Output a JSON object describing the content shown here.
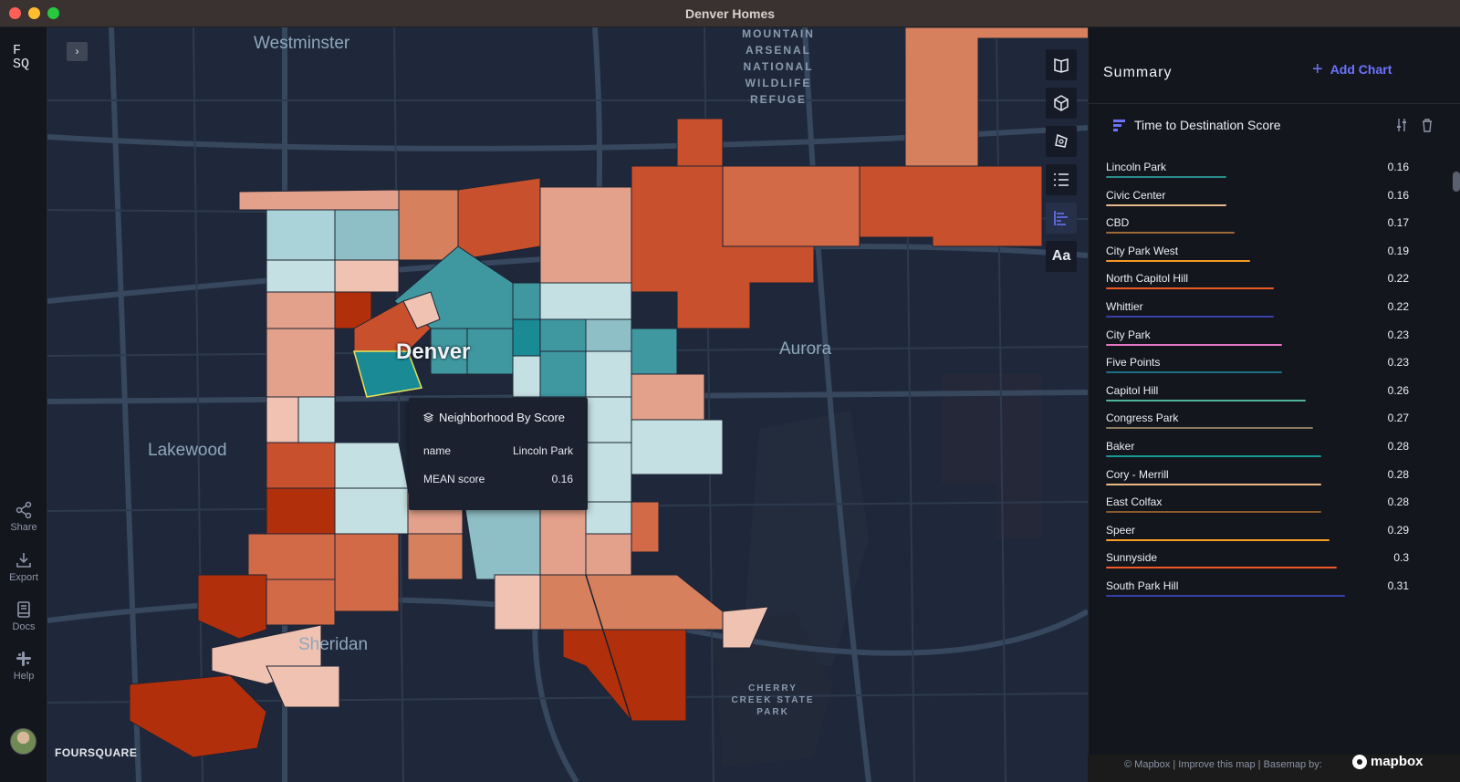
{
  "window": {
    "title": "Denver Homes"
  },
  "rail": {
    "logo": "F\nSQ",
    "share_label": "Share",
    "export_label": "Export",
    "docs_label": "Docs",
    "help_label": "Help"
  },
  "map": {
    "labels": {
      "westminster": "Westminster",
      "denver": "Denver",
      "aurora": "Aurora",
      "lakewood": "Lakewood",
      "sheridan": "Sheridan"
    },
    "arsenal_lines": [
      "MOUNTAIN",
      "ARSENAL",
      "NATIONAL",
      "WILDLIFE",
      "REFUGE"
    ],
    "cherry_creek_lines": [
      "CHERRY",
      "CREEK STATE",
      "PARK"
    ],
    "watermark": "FOURSQUARE",
    "attribution": "© Mapbox | Improve this map | Basemap by:",
    "mapbox_logo": "mapbox",
    "tools": [
      "split-map-icon",
      "3d-cube-icon",
      "draw-polygon-icon",
      "layers-list-icon",
      "chart-icon",
      "text-aa-icon"
    ],
    "tool_text_label": "Aa",
    "colors": {
      "low": "#3f98a0",
      "mid_low": "#a9d3d8",
      "mid_high": "#e3a08a",
      "high": "#c9502c",
      "highest": "#b22f0c",
      "highlight": "#e8e35a"
    }
  },
  "tooltip": {
    "title": "Neighborhood By Score",
    "rows": [
      {
        "key": "name",
        "value": "Lincoln Park"
      },
      {
        "key": "MEAN score",
        "value": "0.16"
      }
    ]
  },
  "panel": {
    "title": "Summary",
    "add_chart": "Add Chart",
    "chart": {
      "title": "Time to Destination Score",
      "type": "bar",
      "items": [
        {
          "label": "Lincoln Park",
          "value": "0.16",
          "color": "#2b8d8c"
        },
        {
          "label": "Civic Center",
          "value": "0.16",
          "color": "#e6b98a"
        },
        {
          "label": "CBD",
          "value": "0.17",
          "color": "#9b6a38"
        },
        {
          "label": "City Park West",
          "value": "0.19",
          "color": "#f39a24"
        },
        {
          "label": "North Capitol Hill",
          "value": "0.22",
          "color": "#ee5a24"
        },
        {
          "label": "Whittier",
          "value": "0.22",
          "color": "#3a3fa8"
        },
        {
          "label": "City Park",
          "value": "0.23",
          "color": "#e276c4"
        },
        {
          "label": "Five Points",
          "value": "0.23",
          "color": "#1d6f86"
        },
        {
          "label": "Capitol Hill",
          "value": "0.26",
          "color": "#4fb39a"
        },
        {
          "label": "Congress Park",
          "value": "0.27",
          "color": "#8a7a5e"
        },
        {
          "label": "Baker",
          "value": "0.28",
          "color": "#169a98"
        },
        {
          "label": "Cory - Merrill",
          "value": "0.28",
          "color": "#e9b985"
        },
        {
          "label": "East Colfax",
          "value": "0.28",
          "color": "#8b5a2b"
        },
        {
          "label": "Speer",
          "value": "0.29",
          "color": "#f6a023"
        },
        {
          "label": "Sunnyside",
          "value": "0.3",
          "color": "#f05a28"
        },
        {
          "label": "South Park Hill",
          "value": "0.31",
          "color": "#3440a8"
        }
      ]
    }
  }
}
